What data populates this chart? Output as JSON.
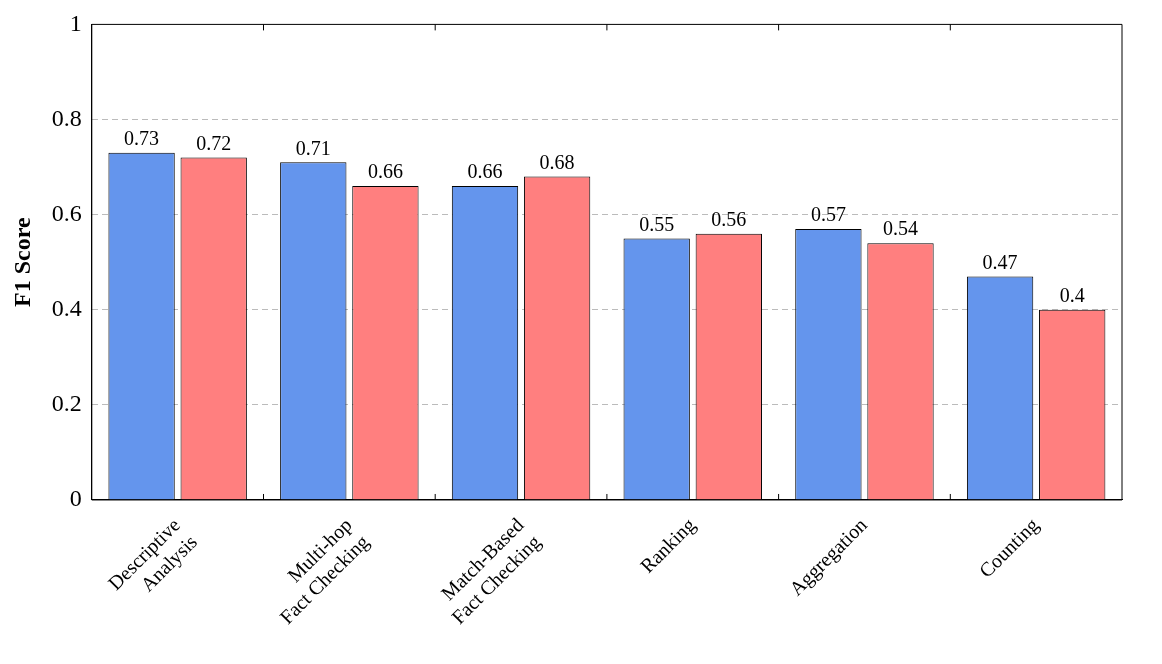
{
  "chart_data": {
    "type": "bar",
    "ylabel": "F1 Score",
    "categories": [
      "Descriptive\nAnalysis",
      "Multi-hop\nFact Checking",
      "Match-Based\nFact Checking",
      "Ranking",
      "Aggregation",
      "Counting"
    ],
    "series": [
      {
        "color": "#6495ed",
        "values": [
          0.73,
          0.71,
          0.66,
          0.55,
          0.57,
          0.47
        ]
      },
      {
        "color": "#ff7f7f",
        "values": [
          0.72,
          0.66,
          0.68,
          0.56,
          0.54,
          0.4
        ]
      }
    ],
    "ylim": [
      0,
      1
    ],
    "yticks": [
      0,
      0.2,
      0.4,
      0.6,
      0.8,
      1
    ],
    "grid": "y",
    "data_labels": true
  }
}
